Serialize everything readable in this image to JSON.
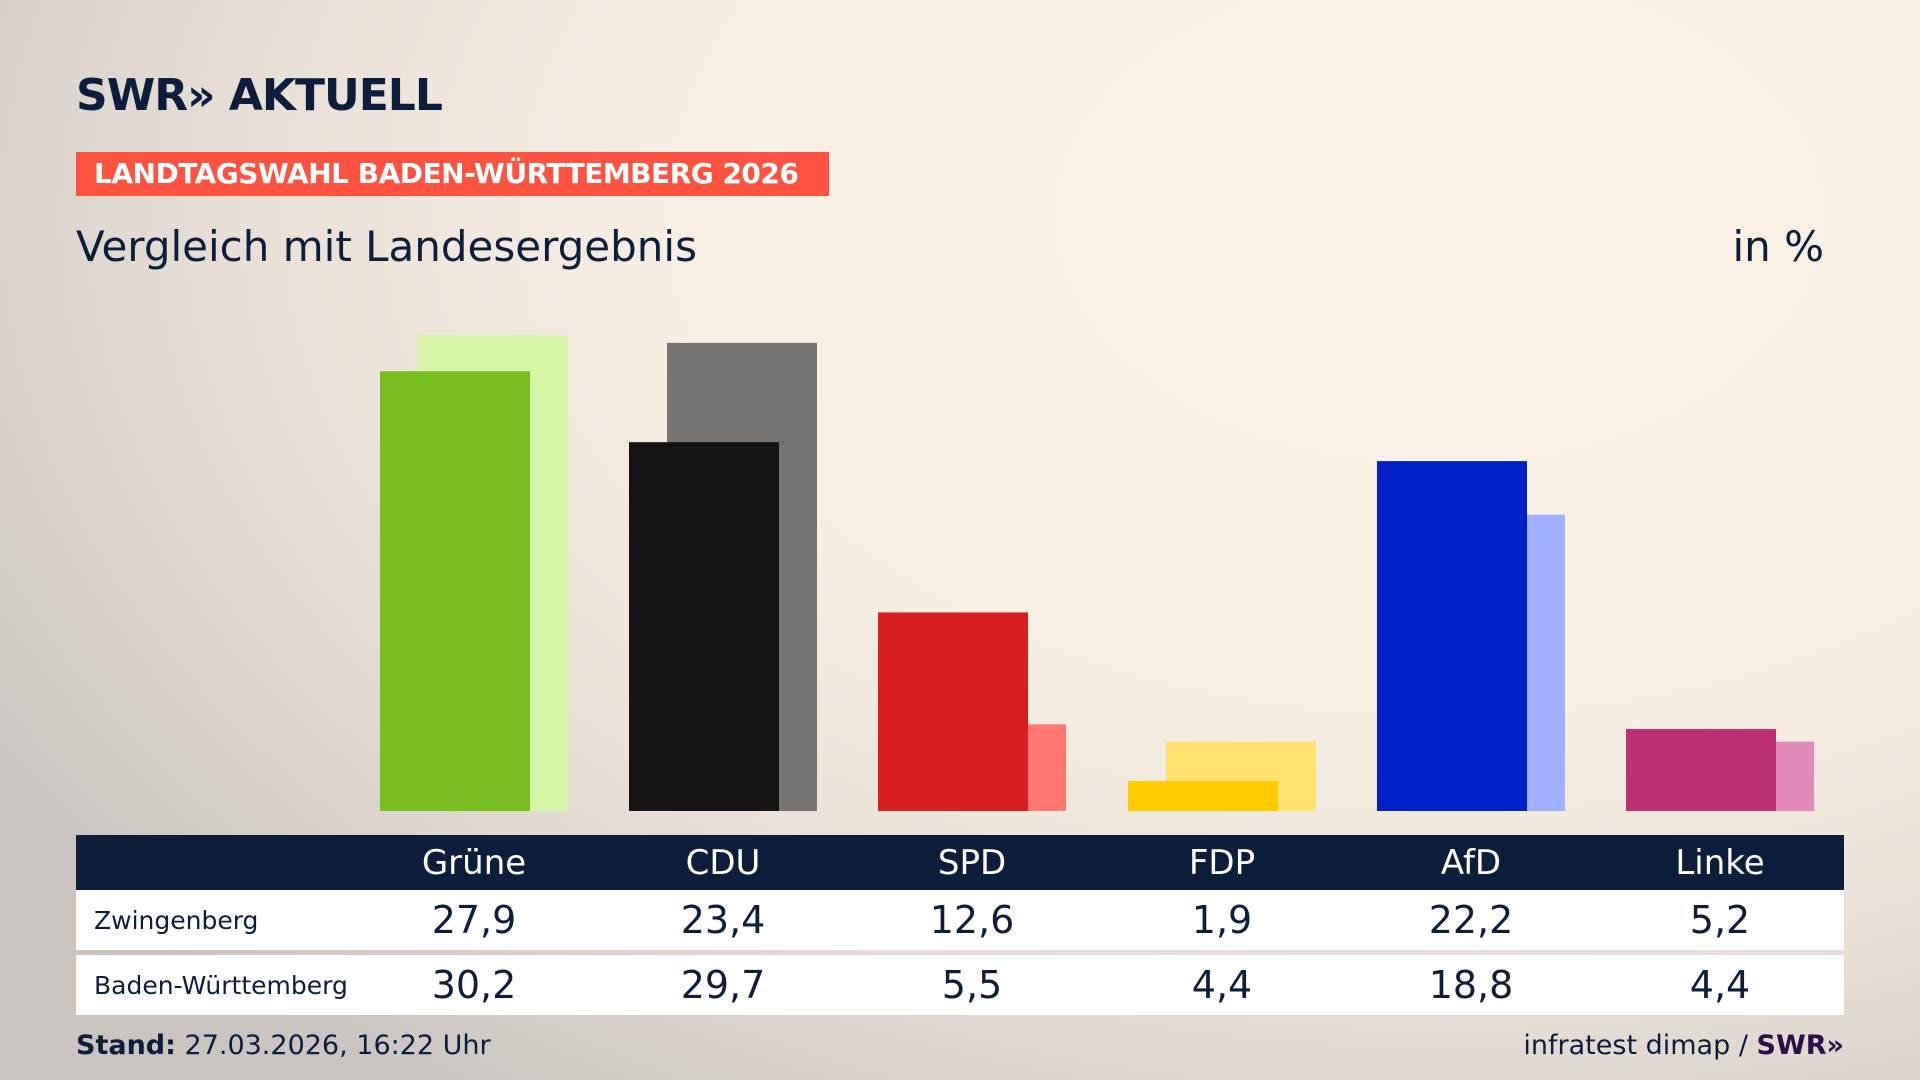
{
  "header": {
    "logo": "SWR» AKTUELL",
    "banner": "LANDTAGSWAHL BADEN-WÜRTTEMBERG 2026",
    "subtitle": "Vergleich mit Landesergebnis",
    "unit": "in %"
  },
  "chart_data": {
    "type": "bar",
    "categories": [
      "Grüne",
      "CDU",
      "SPD",
      "FDP",
      "AfD",
      "Linke"
    ],
    "series": [
      {
        "name": "Zwingenberg",
        "values": [
          27.9,
          23.4,
          12.6,
          1.9,
          22.2,
          5.2
        ],
        "display": [
          "27,9",
          "23,4",
          "12,6",
          "1,9",
          "22,2",
          "5,2"
        ]
      },
      {
        "name": "Baden-Württemberg",
        "values": [
          30.2,
          29.7,
          5.5,
          4.4,
          18.8,
          4.4
        ],
        "display": [
          "30,2",
          "29,7",
          "5,5",
          "4,4",
          "18,8",
          "4,4"
        ]
      }
    ],
    "colors": {
      "Zwingenberg": [
        "#78be1e",
        "#141414",
        "#d71f1f",
        "#ffcc00",
        "#0021c8",
        "#be3075"
      ],
      "Baden-Württemberg": [
        "#d6f5a8",
        "#767371",
        "#ff7771",
        "#ffe270",
        "#a0b0ff",
        "#df8ab8"
      ]
    },
    "ylim": [
      0,
      30.2
    ],
    "grid": false
  },
  "footer": {
    "stand_label": "Stand:",
    "stand_value": "27.03.2026, 16:22 Uhr",
    "source": "infratest dimap /",
    "source_logo": "SWR»"
  },
  "colors": {
    "navy": "#0c1e3c",
    "banner": "#ff5240"
  }
}
